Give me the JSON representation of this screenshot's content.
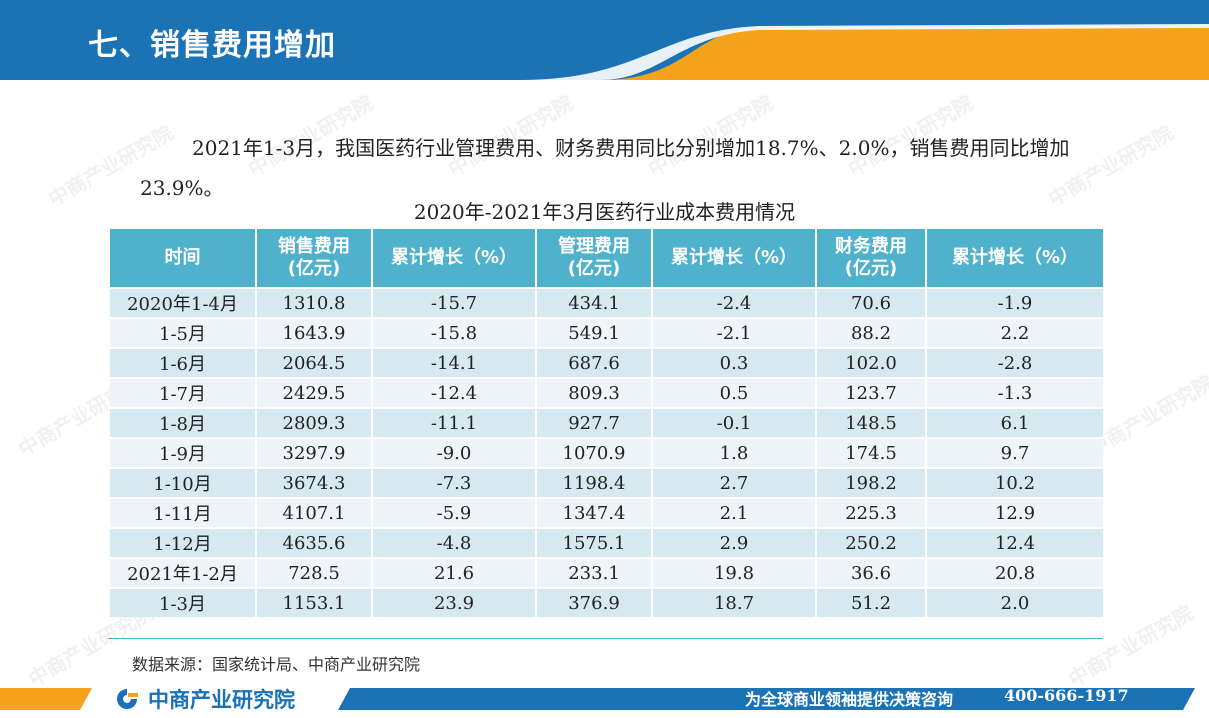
{
  "header": {
    "title": "七、销售费用增加"
  },
  "intro": "2021年1-3月，我国医药行业管理费用、财务费用同比分别增加18.7%、2.0%，销售费用同比增加23.9%。",
  "table": {
    "title": "2020年-2021年3月医药行业成本费用情况",
    "headers": [
      "时间",
      "销售费用\n(亿元)",
      "累计增长（%）",
      "管理费用\n(亿元)",
      "累计增长（%）",
      "财务费用\n(亿元)",
      "累计增长（%）"
    ],
    "rows": [
      [
        "2020年1-4月",
        "1310.8",
        "-15.7",
        "434.1",
        "-2.4",
        "70.6",
        "-1.9"
      ],
      [
        "1-5月",
        "1643.9",
        "-15.8",
        "549.1",
        "-2.1",
        "88.2",
        "2.2"
      ],
      [
        "1-6月",
        "2064.5",
        "-14.1",
        "687.6",
        "0.3",
        "102.0",
        "-2.8"
      ],
      [
        "1-7月",
        "2429.5",
        "-12.4",
        "809.3",
        "0.5",
        "123.7",
        "-1.3"
      ],
      [
        "1-8月",
        "2809.3",
        "-11.1",
        "927.7",
        "-0.1",
        "148.5",
        "6.1"
      ],
      [
        "1-9月",
        "3297.9",
        "-9.0",
        "1070.9",
        "1.8",
        "174.5",
        "9.7"
      ],
      [
        "1-10月",
        "3674.3",
        "-7.3",
        "1198.4",
        "2.7",
        "198.2",
        "10.2"
      ],
      [
        "1-11月",
        "4107.1",
        "-5.9",
        "1347.4",
        "2.1",
        "225.3",
        "12.9"
      ],
      [
        "1-12月",
        "4635.6",
        "-4.8",
        "1575.1",
        "2.9",
        "250.2",
        "12.4"
      ],
      [
        "2021年1-2月",
        "728.5",
        "21.6",
        "233.1",
        "19.8",
        "36.6",
        "20.8"
      ],
      [
        "1-3月",
        "1153.1",
        "23.9",
        "376.9",
        "18.7",
        "51.2",
        "2.0"
      ]
    ]
  },
  "source": "数据来源：国家统计局、中商产业研究院",
  "footer": {
    "logo_text": "中商产业研究院",
    "slogan": "为全球商业领袖提供决策咨询",
    "phone": "400-666-1917"
  },
  "watermark": "中商产业研究院",
  "colors": {
    "header_blue": "#1b72b5",
    "accent_orange": "#f5a31a",
    "table_header": "#4fb1cb",
    "row_odd": "#d7e9f0",
    "row_even": "#edf5f8"
  }
}
